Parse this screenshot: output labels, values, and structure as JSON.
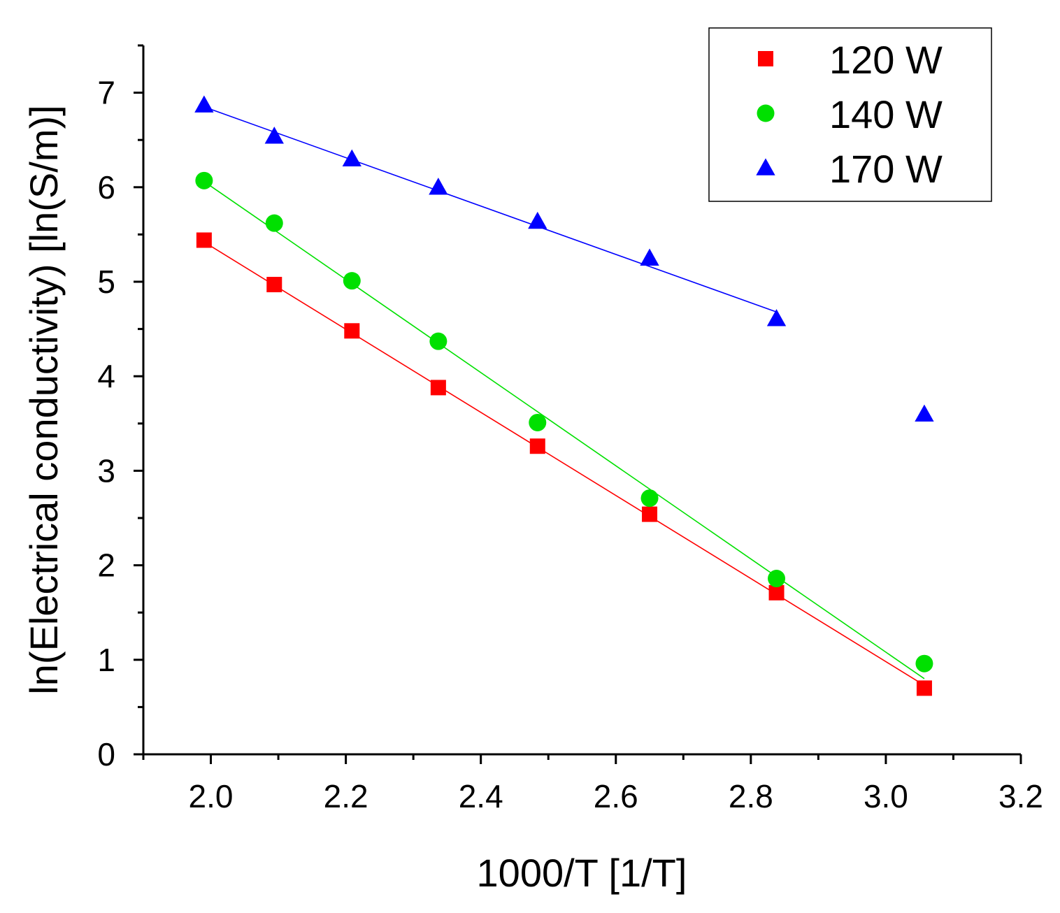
{
  "chart_data": {
    "type": "scatter",
    "title": "",
    "xlabel": "1000/T [1/T]",
    "ylabel": "ln(Electrical conductivity) [ln(S/m)]",
    "xlim": [
      1.9,
      3.2
    ],
    "ylim": [
      0,
      7.5
    ],
    "x_ticks": [
      "2.0",
      "2.2",
      "2.4",
      "2.6",
      "2.8",
      "3.0",
      "3.2"
    ],
    "x_tick_values": [
      2.0,
      2.2,
      2.4,
      2.6,
      2.8,
      3.0,
      3.2
    ],
    "y_ticks": [
      "0",
      "1",
      "2",
      "3",
      "4",
      "5",
      "6",
      "7"
    ],
    "y_tick_values": [
      0,
      1,
      2,
      3,
      4,
      5,
      6,
      7
    ],
    "grid": false,
    "legend_position": "top-right",
    "series": [
      {
        "name": "120 W",
        "marker": "square",
        "color": "#ff0000",
        "x": [
          1.99,
          2.094,
          2.209,
          2.337,
          2.484,
          2.65,
          2.838,
          3.057
        ],
        "y": [
          5.44,
          4.97,
          4.48,
          3.88,
          3.26,
          2.54,
          1.71,
          0.7
        ],
        "fit": [
          [
            1.99,
            5.42
          ],
          [
            3.057,
            0.73
          ]
        ]
      },
      {
        "name": "140 W",
        "marker": "circle",
        "color": "#00e000",
        "x": [
          1.99,
          2.094,
          2.209,
          2.337,
          2.484,
          2.65,
          2.838,
          3.057
        ],
        "y": [
          6.07,
          5.62,
          5.01,
          4.37,
          3.51,
          2.71,
          1.86,
          0.96
        ],
        "fit": [
          [
            1.99,
            6.06
          ],
          [
            3.057,
            0.8
          ]
        ]
      },
      {
        "name": "170 W",
        "marker": "triangle",
        "color": "#0000ff",
        "x": [
          1.99,
          2.094,
          2.209,
          2.337,
          2.484,
          2.65,
          2.838,
          3.057
        ],
        "y": [
          6.87,
          6.54,
          6.3,
          6.0,
          5.64,
          5.25,
          4.61,
          3.6
        ],
        "fit": [
          [
            1.99,
            6.85
          ],
          [
            2.838,
            4.68
          ]
        ]
      }
    ]
  }
}
